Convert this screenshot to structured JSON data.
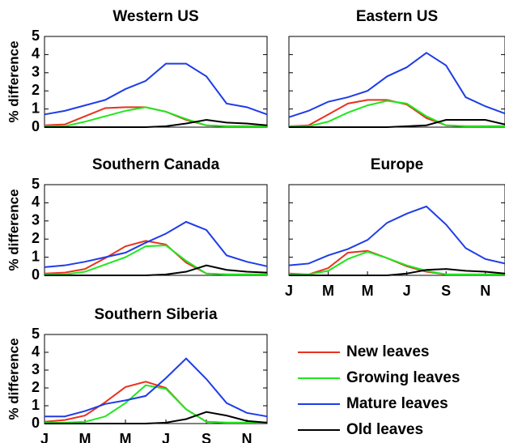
{
  "chart_data": [
    {
      "type": "line",
      "title": "Western US",
      "ylabel": "% difference",
      "categories": [
        null,
        null,
        null,
        null,
        null,
        null,
        null,
        null,
        null,
        null,
        null,
        null
      ],
      "ylim": [
        0,
        5
      ],
      "yticks": [
        0,
        1,
        2,
        3,
        4,
        5
      ],
      "series": [
        {
          "color": "#e8321e",
          "values": [
            0.1,
            0.15,
            0.6,
            1.05,
            1.1,
            1.1,
            0.85,
            0.4,
            0.1,
            0.05,
            0.05,
            0.05
          ]
        },
        {
          "color": "#1ee81e",
          "values": [
            0.05,
            0.05,
            0.3,
            0.6,
            0.9,
            1.1,
            0.85,
            0.45,
            0.1,
            0.05,
            0.05,
            0.05
          ]
        },
        {
          "color": "#1e3ce8",
          "values": [
            0.7,
            0.9,
            1.2,
            1.5,
            2.1,
            2.55,
            3.5,
            3.5,
            2.8,
            1.3,
            1.1,
            0.7
          ]
        },
        {
          "color": "#000000",
          "values": [
            0,
            0,
            0,
            0,
            0,
            0,
            0.05,
            0.2,
            0.4,
            0.25,
            0.2,
            0.1
          ]
        }
      ]
    },
    {
      "type": "line",
      "title": "Eastern US",
      "categories": [
        null,
        null,
        null,
        null,
        null,
        null,
        null,
        null,
        null,
        null,
        null,
        null
      ],
      "ylim": [
        0,
        5
      ],
      "yticks": [
        0,
        1,
        2,
        3,
        4,
        5
      ],
      "series": [
        {
          "color": "#e8321e",
          "values": [
            0.05,
            0.1,
            0.7,
            1.3,
            1.5,
            1.5,
            1.25,
            0.5,
            0.1,
            0.05,
            0.05,
            0.05
          ]
        },
        {
          "color": "#1ee81e",
          "values": [
            0.05,
            0.05,
            0.3,
            0.8,
            1.2,
            1.45,
            1.3,
            0.6,
            0.1,
            0.05,
            0.05,
            0.05
          ]
        },
        {
          "color": "#1e3ce8",
          "values": [
            0.55,
            0.9,
            1.4,
            1.65,
            2.0,
            2.8,
            3.3,
            4.1,
            3.4,
            1.65,
            1.15,
            0.75
          ]
        },
        {
          "color": "#000000",
          "values": [
            0,
            0,
            0,
            0,
            0,
            0,
            0.05,
            0.1,
            0.4,
            0.4,
            0.4,
            0.15
          ]
        }
      ]
    },
    {
      "type": "line",
      "title": "Southern Canada",
      "ylabel": "% difference",
      "categories": [
        null,
        null,
        null,
        null,
        null,
        null,
        null,
        null,
        null,
        null,
        null,
        null
      ],
      "ylim": [
        0,
        5
      ],
      "yticks": [
        0,
        1,
        2,
        3,
        4,
        5
      ],
      "series": [
        {
          "color": "#e8321e",
          "values": [
            0.1,
            0.15,
            0.35,
            0.95,
            1.6,
            1.9,
            1.7,
            0.7,
            0.1,
            0.05,
            0.05,
            0.05
          ]
        },
        {
          "color": "#1ee81e",
          "values": [
            0.05,
            0.05,
            0.2,
            0.6,
            1.0,
            1.6,
            1.65,
            0.8,
            0.1,
            0.05,
            0.05,
            0.05
          ]
        },
        {
          "color": "#1e3ce8",
          "values": [
            0.45,
            0.55,
            0.75,
            1.0,
            1.25,
            1.8,
            2.3,
            2.95,
            2.5,
            1.1,
            0.75,
            0.5
          ]
        },
        {
          "color": "#000000",
          "values": [
            0,
            0,
            0,
            0,
            0,
            0,
            0.05,
            0.2,
            0.55,
            0.3,
            0.2,
            0.15
          ]
        }
      ]
    },
    {
      "type": "line",
      "title": "Europe",
      "categories": [
        "J",
        null,
        "M",
        null,
        "M",
        null,
        "J",
        null,
        "S",
        null,
        "N",
        null
      ],
      "ylim": [
        0,
        5
      ],
      "yticks": [
        0,
        1,
        2,
        3,
        4,
        5
      ],
      "series": [
        {
          "color": "#e8321e",
          "values": [
            0.1,
            0.05,
            0.4,
            1.25,
            1.35,
            0.95,
            0.5,
            0.2,
            0.05,
            0.05,
            0.05,
            0.05
          ]
        },
        {
          "color": "#1ee81e",
          "values": [
            0.05,
            0.05,
            0.25,
            0.9,
            1.3,
            0.95,
            0.55,
            0.25,
            0.05,
            0.05,
            0.05,
            0.05
          ]
        },
        {
          "color": "#1e3ce8",
          "values": [
            0.55,
            0.65,
            1.1,
            1.45,
            1.95,
            2.9,
            3.4,
            3.8,
            2.8,
            1.5,
            0.9,
            0.65
          ]
        },
        {
          "color": "#000000",
          "values": [
            0,
            0,
            0,
            0,
            0,
            0,
            0.1,
            0.3,
            0.35,
            0.25,
            0.2,
            0.1
          ]
        }
      ]
    },
    {
      "type": "line",
      "title": "Southern Siberia",
      "ylabel": "% difference",
      "categories": [
        "J",
        null,
        "M",
        null,
        "M",
        null,
        "J",
        null,
        "S",
        null,
        "N",
        null
      ],
      "ylim": [
        0,
        5
      ],
      "yticks": [
        0,
        1,
        2,
        3,
        4,
        5
      ],
      "series": [
        {
          "color": "#e8321e",
          "values": [
            0.1,
            0.2,
            0.45,
            1.2,
            2.05,
            2.35,
            2.0,
            0.8,
            0.1,
            0.05,
            0.05,
            0.05
          ]
        },
        {
          "color": "#1ee81e",
          "values": [
            0.05,
            0.05,
            0.1,
            0.4,
            1.15,
            2.15,
            1.95,
            0.8,
            0.1,
            0.05,
            0.05,
            0.05
          ]
        },
        {
          "color": "#1e3ce8",
          "values": [
            0.4,
            0.4,
            0.7,
            1.1,
            1.3,
            1.55,
            2.55,
            3.65,
            2.5,
            1.15,
            0.6,
            0.4
          ]
        },
        {
          "color": "#000000",
          "values": [
            0,
            0,
            0,
            0,
            0,
            0,
            0.05,
            0.25,
            0.65,
            0.45,
            0.15,
            0.05
          ]
        }
      ]
    }
  ],
  "legend": [
    {
      "name": "New leaves",
      "color": "#e8321e"
    },
    {
      "name": "Growing leaves",
      "color": "#1ee81e"
    },
    {
      "name": "Mature leaves",
      "color": "#1e3ce8"
    },
    {
      "name": "Old leaves",
      "color": "#000000"
    }
  ]
}
